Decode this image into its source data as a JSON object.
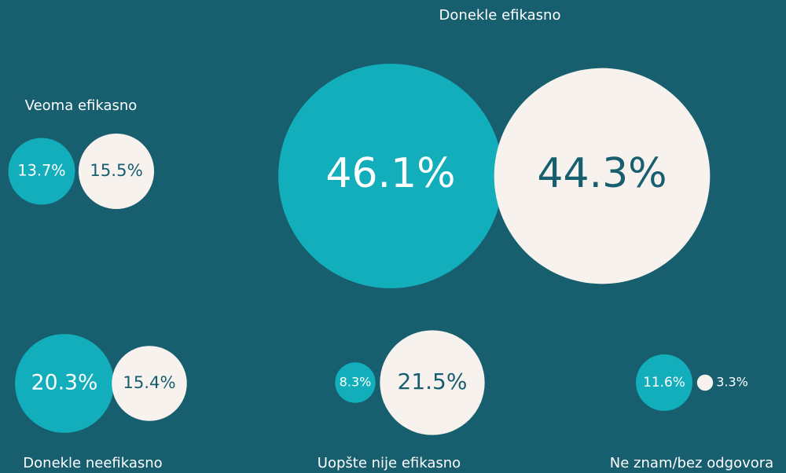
{
  "chart_data": {
    "type": "paired-bubble",
    "categories": [
      "Veoma efikasno",
      "Donekle efikasno",
      "Donekle neefikasno",
      "Uopšte nije efikasno",
      "Ne znam/bez odgovora"
    ],
    "series": [
      {
        "color": "#13aebb",
        "values": [
          13.7,
          46.1,
          20.3,
          8.3,
          11.6
        ],
        "value_labels": [
          "13.7%",
          "46.1%",
          "20.3%",
          "8.3%",
          "11.6%"
        ]
      },
      {
        "color": "#f7f2ee",
        "values": [
          15.5,
          44.3,
          15.4,
          21.5,
          3.3
        ],
        "value_labels": [
          "15.5%",
          "44.3%",
          "15.4%",
          "21.5%",
          "3.3%"
        ]
      }
    ]
  }
}
